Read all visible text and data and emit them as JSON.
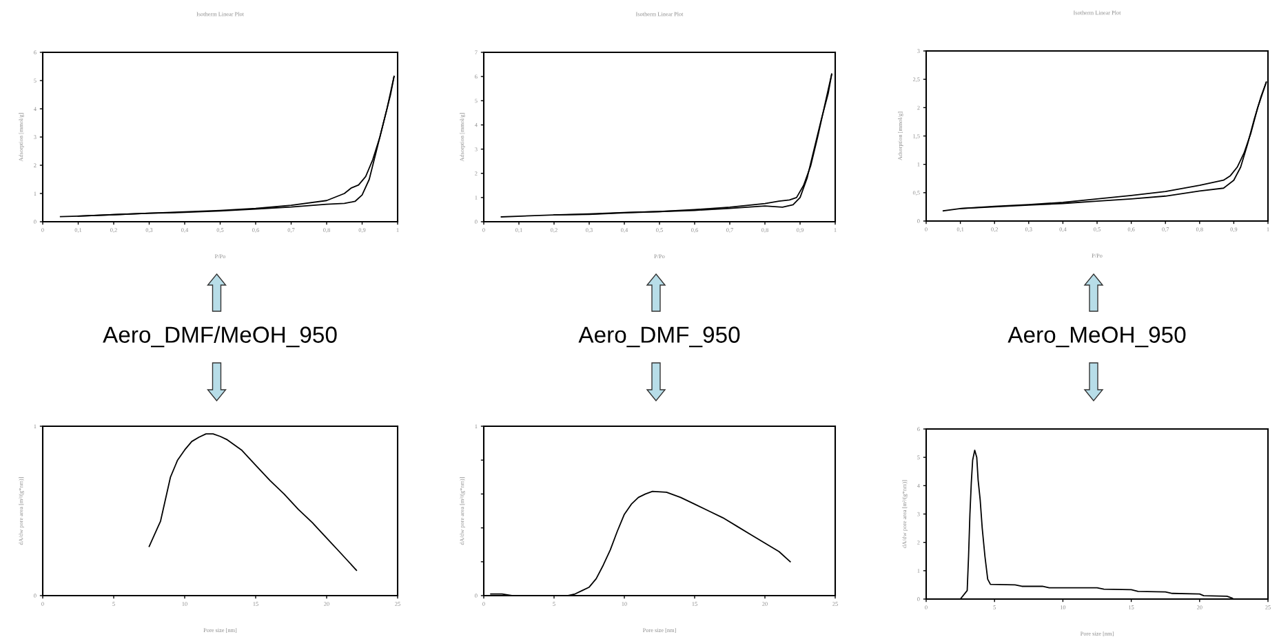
{
  "chart_data": [
    {
      "type": "line",
      "title": "Isotherm Linear Plot",
      "xlabel": "P/Po",
      "ylabel": "Adsorption [mmol/g]",
      "annotations": [
        "Aero_DMF/MeOH_950"
      ],
      "series": [
        {
          "color": "#000000",
          "x": [
            0.05,
            0.1,
            0.2,
            0.3,
            0.4,
            0.5,
            0.6,
            0.7,
            0.8,
            0.85,
            0.88,
            0.9,
            0.92,
            0.94,
            0.96,
            0.98,
            0.99
          ],
          "values": [
            0.18,
            0.2,
            0.25,
            0.3,
            0.33,
            0.38,
            0.45,
            0.52,
            0.62,
            0.65,
            0.72,
            0.95,
            1.5,
            2.5,
            3.5,
            4.5,
            5.15
          ]
        },
        {
          "color": "#000000",
          "x": [
            0.99,
            0.97,
            0.95,
            0.93,
            0.91,
            0.89,
            0.87,
            0.85,
            0.8,
            0.7,
            0.6,
            0.5,
            0.4,
            0.3,
            0.2,
            0.1
          ],
          "values": [
            5.15,
            4.0,
            3.0,
            2.2,
            1.6,
            1.3,
            1.2,
            1.0,
            0.75,
            0.58,
            0.47,
            0.4,
            0.35,
            0.3,
            0.25,
            0.2
          ]
        }
      ],
      "xlim": [
        0,
        1
      ],
      "ylim": [
        0,
        6
      ],
      "xticks": [
        0,
        {
          "value": 0.1,
          "label": "0,1"
        },
        {
          "value": 0.2,
          "label": "0,2"
        },
        {
          "value": 0.3,
          "label": "0,3"
        },
        {
          "value": 0.4,
          "label": "0,4"
        },
        {
          "value": 0.5,
          "label": "0,5"
        },
        {
          "value": 0.6,
          "label": "0,6"
        },
        {
          "value": 0.7,
          "label": "0,7"
        },
        {
          "value": 0.8,
          "label": "0,8"
        },
        {
          "value": 0.9,
          "label": "0,9"
        },
        1
      ],
      "yticks": [
        0,
        1,
        2,
        3,
        4,
        5,
        6
      ]
    },
    {
      "type": "line",
      "title": "Isotherm Linear Plot",
      "xlabel": "P/Po",
      "ylabel": "Adsorption [mmol/g]",
      "annotations": [
        "Aero_DMF_950"
      ],
      "series": [
        {
          "color": "#000000",
          "x": [
            0.05,
            0.2,
            0.3,
            0.4,
            0.5,
            0.6,
            0.7,
            0.8,
            0.85,
            0.88,
            0.9,
            0.92,
            0.94,
            0.96,
            0.98,
            0.99
          ],
          "values": [
            0.2,
            0.28,
            0.3,
            0.37,
            0.42,
            0.47,
            0.55,
            0.65,
            0.6,
            0.7,
            1.0,
            1.8,
            3.0,
            4.2,
            5.3,
            6.1
          ]
        },
        {
          "color": "#000000",
          "x": [
            0.99,
            0.97,
            0.95,
            0.93,
            0.91,
            0.89,
            0.87,
            0.84,
            0.8,
            0.7,
            0.6,
            0.5,
            0.4,
            0.3,
            0.2
          ],
          "values": [
            6.1,
            4.8,
            3.5,
            2.3,
            1.5,
            1.0,
            0.9,
            0.85,
            0.75,
            0.6,
            0.5,
            0.42,
            0.38,
            0.32,
            0.28
          ]
        }
      ],
      "xlim": [
        0,
        1
      ],
      "ylim": [
        0,
        7
      ],
      "xticks": [
        0,
        {
          "value": 0.1,
          "label": "0,1"
        },
        {
          "value": 0.2,
          "label": "0,2"
        },
        {
          "value": 0.3,
          "label": "0,3"
        },
        {
          "value": 0.4,
          "label": "0,4"
        },
        {
          "value": 0.5,
          "label": "0,5"
        },
        {
          "value": 0.6,
          "label": "0,6"
        },
        {
          "value": 0.7,
          "label": "0,7"
        },
        {
          "value": 0.8,
          "label": "0,8"
        },
        {
          "value": 0.9,
          "label": "0,9"
        },
        1
      ],
      "yticks": [
        0,
        1,
        2,
        3,
        4,
        5,
        6,
        7
      ]
    },
    {
      "type": "line",
      "title": "Isotherm Linear Plot",
      "xlabel": "P/Po",
      "ylabel": "Adsorption [mmol/g]",
      "annotations": [
        "Aero_MeOH_950"
      ],
      "series": [
        {
          "color": "#000000",
          "x": [
            0.05,
            0.1,
            0.2,
            0.3,
            0.4,
            0.5,
            0.6,
            0.7,
            0.8,
            0.87,
            0.9,
            0.92,
            0.94,
            0.96,
            0.98,
            0.995
          ],
          "values": [
            0.18,
            0.22,
            0.25,
            0.28,
            0.31,
            0.35,
            0.39,
            0.44,
            0.53,
            0.58,
            0.72,
            0.95,
            1.35,
            1.8,
            2.2,
            2.45
          ]
        },
        {
          "color": "#000000",
          "x": [
            0.995,
            0.97,
            0.95,
            0.93,
            0.91,
            0.89,
            0.87,
            0.8,
            0.7,
            0.6,
            0.5,
            0.4,
            0.3,
            0.2,
            0.1
          ],
          "values": [
            2.45,
            2.0,
            1.55,
            1.2,
            0.95,
            0.8,
            0.72,
            0.63,
            0.52,
            0.45,
            0.39,
            0.33,
            0.29,
            0.26,
            0.22
          ]
        }
      ],
      "xlim": [
        0,
        1
      ],
      "ylim": [
        0,
        3
      ],
      "xticks": [
        0,
        {
          "value": 0.1,
          "label": "0,1"
        },
        {
          "value": 0.2,
          "label": "0,2"
        },
        {
          "value": 0.3,
          "label": "0,3"
        },
        {
          "value": 0.4,
          "label": "0,4"
        },
        {
          "value": 0.5,
          "label": "0,5"
        },
        {
          "value": 0.6,
          "label": "0,6"
        },
        {
          "value": 0.7,
          "label": "0,7"
        },
        {
          "value": 0.8,
          "label": "0,8"
        },
        {
          "value": 0.9,
          "label": "0,9"
        },
        1
      ],
      "yticks": [
        0,
        {
          "value": 0.5,
          "label": "0,5"
        },
        1,
        {
          "value": 1.5,
          "label": "1,5"
        },
        2,
        {
          "value": 2.5,
          "label": "2,5"
        },
        3
      ]
    },
    {
      "type": "line",
      "xlabel": "Pore size [nm]",
      "ylabel": "dA/dw pore area [m²/(g*nm)]",
      "series": [
        {
          "color": "#000000",
          "x": [
            7.5,
            8.3,
            9.0,
            9.5,
            10.0,
            10.5,
            11.0,
            11.5,
            12.0,
            12.5,
            13.0,
            14.0,
            15.0,
            16.0,
            17.0,
            18.0,
            19.0,
            20.0,
            21.0,
            22.1
          ],
          "values": [
            0.29,
            0.44,
            0.7,
            0.8,
            0.86,
            0.91,
            0.935,
            0.955,
            0.955,
            0.94,
            0.92,
            0.86,
            0.77,
            0.68,
            0.6,
            0.51,
            0.43,
            0.34,
            0.25,
            0.15
          ]
        }
      ],
      "xlim": [
        0,
        25
      ],
      "ylim": [
        0,
        1
      ],
      "xticks": [
        0,
        5,
        10,
        15,
        20,
        25
      ],
      "yticks": [
        0,
        1
      ]
    },
    {
      "type": "line",
      "xlabel": "Pore size [nm]",
      "ylabel": "dA/dw pore area [m²/(g*nm)]",
      "series": [
        {
          "color": "#000000",
          "x": [
            0.5,
            1.3,
            2.0,
            6.0,
            6.5,
            7.0,
            7.5,
            8.0,
            8.5,
            9.0,
            9.5,
            10.0,
            10.5,
            11.0,
            11.5,
            12.0,
            13.0,
            14.0,
            15.0,
            16.0,
            17.0,
            18.0,
            19.0,
            20.0,
            21.0,
            21.8
          ],
          "values": [
            0.01,
            0.01,
            0,
            0,
            0.01,
            0.03,
            0.05,
            0.1,
            0.18,
            0.27,
            0.38,
            0.48,
            0.54,
            0.58,
            0.6,
            0.615,
            0.61,
            0.58,
            0.54,
            0.5,
            0.46,
            0.41,
            0.36,
            0.31,
            0.26,
            0.2
          ]
        }
      ],
      "xlim": [
        0,
        25
      ],
      "ylim": [
        0,
        1
      ],
      "xticks": [
        0,
        5,
        10,
        15,
        20,
        25
      ],
      "yticks": [
        0,
        {
          "value": 0.2,
          "label": null
        },
        {
          "value": 0.4,
          "label": null
        },
        {
          "value": 0.6,
          "label": null
        },
        {
          "value": 0.8,
          "label": null
        },
        1
      ]
    },
    {
      "type": "line",
      "xlabel": "Pore size [nm]",
      "ylabel": "dA/dw pore area [m²/(g*nm)]",
      "series": [
        {
          "color": "#000000",
          "x": [
            2.5,
            3.0,
            3.1,
            3.2,
            3.3,
            3.4,
            3.55,
            3.7,
            3.8,
            3.95,
            4.1,
            4.3,
            4.5,
            4.7,
            6.5,
            7.0,
            8.5,
            9.0,
            12.5,
            13.0,
            15.0,
            15.5,
            17.5,
            18.0,
            20.0,
            20.3,
            22.0,
            22.4
          ],
          "values": [
            0,
            0.3,
            1.5,
            3.0,
            4.1,
            4.9,
            5.25,
            5.0,
            4.2,
            3.5,
            2.5,
            1.5,
            0.7,
            0.52,
            0.5,
            0.45,
            0.45,
            0.4,
            0.4,
            0.35,
            0.33,
            0.27,
            0.25,
            0.2,
            0.18,
            0.12,
            0.1,
            0.03
          ]
        }
      ],
      "xlim": [
        0,
        25
      ],
      "ylim": [
        0,
        6
      ],
      "xticks": [
        0,
        5,
        10,
        15,
        20,
        25
      ],
      "yticks": [
        0,
        1,
        2,
        3,
        4,
        5,
        6
      ]
    }
  ]
}
